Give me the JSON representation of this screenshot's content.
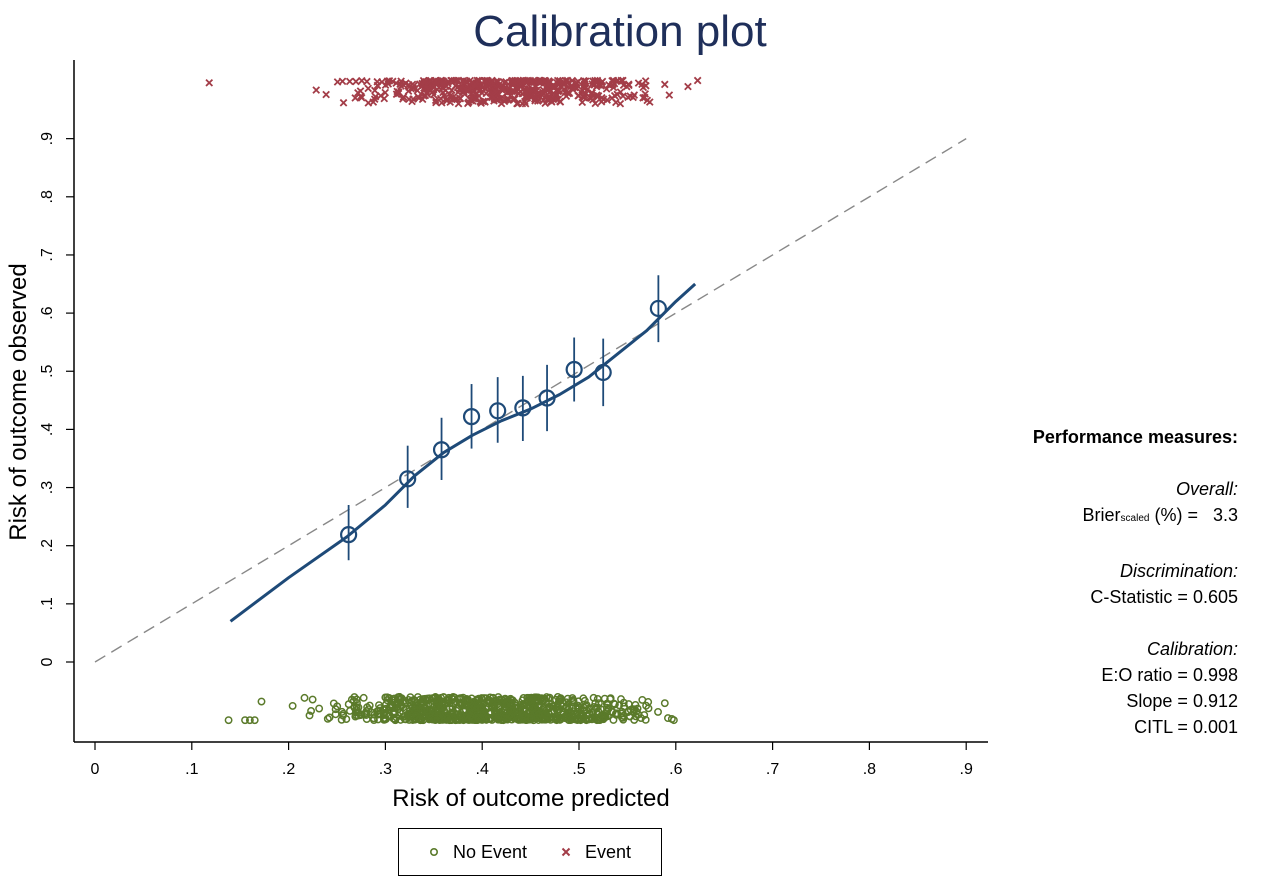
{
  "chart_data": {
    "type": "scatter",
    "title": "Calibration plot",
    "xlabel": "Risk of outcome predicted",
    "ylabel": "Risk of outcome observed",
    "xlim": [
      0,
      0.9
    ],
    "ylim": [
      -0.14,
      1.0
    ],
    "x_ticks": [
      0,
      0.1,
      0.2,
      0.3,
      0.4,
      0.5,
      0.6,
      0.7,
      0.8,
      0.9
    ],
    "x_tick_labels": [
      "0",
      ".1",
      ".2",
      ".3",
      ".4",
      ".5",
      ".6",
      ".7",
      ".8",
      ".9"
    ],
    "y_ticks": [
      0,
      0.1,
      0.2,
      0.3,
      0.4,
      0.5,
      0.6,
      0.7,
      0.8,
      0.9
    ],
    "y_tick_labels": [
      "0",
      ".1",
      ".2",
      ".3",
      ".4",
      ".5",
      ".6",
      ".7",
      ".8",
      ".9"
    ],
    "grid": false,
    "legend_position": "bottom",
    "reference_line": {
      "x": [
        0,
        0.9
      ],
      "y": [
        0,
        0.9
      ],
      "style": "dashed"
    },
    "smoothed_curve": {
      "x": [
        0.14,
        0.2,
        0.26,
        0.3,
        0.33,
        0.36,
        0.39,
        0.42,
        0.45,
        0.48,
        0.51,
        0.54,
        0.57,
        0.6,
        0.62
      ],
      "y": [
        0.07,
        0.145,
        0.215,
        0.27,
        0.32,
        0.36,
        0.39,
        0.415,
        0.435,
        0.46,
        0.49,
        0.53,
        0.57,
        0.62,
        0.65
      ]
    },
    "grouped_points": [
      {
        "x": 0.262,
        "y": 0.219,
        "lo": 0.175,
        "hi": 0.27
      },
      {
        "x": 0.323,
        "y": 0.315,
        "lo": 0.265,
        "hi": 0.372
      },
      {
        "x": 0.358,
        "y": 0.365,
        "lo": 0.313,
        "hi": 0.42
      },
      {
        "x": 0.389,
        "y": 0.422,
        "lo": 0.367,
        "hi": 0.478
      },
      {
        "x": 0.416,
        "y": 0.432,
        "lo": 0.377,
        "hi": 0.49
      },
      {
        "x": 0.442,
        "y": 0.437,
        "lo": 0.38,
        "hi": 0.492
      },
      {
        "x": 0.467,
        "y": 0.454,
        "lo": 0.397,
        "hi": 0.511
      },
      {
        "x": 0.495,
        "y": 0.503,
        "lo": 0.448,
        "hi": 0.558
      },
      {
        "x": 0.525,
        "y": 0.498,
        "lo": 0.44,
        "hi": 0.556
      },
      {
        "x": 0.582,
        "y": 0.608,
        "lo": 0.55,
        "hi": 0.665
      }
    ],
    "event_spikes": {
      "x_range": [
        0.12,
        0.64
      ],
      "y_range": [
        0.96,
        1.0
      ]
    },
    "no_event_spikes": {
      "x_range": [
        0.14,
        0.635
      ],
      "y_range": [
        -0.1,
        -0.06
      ]
    },
    "series": [
      {
        "name": "No Event",
        "marker": "circle",
        "color": "#5a7a2a"
      },
      {
        "name": "Event",
        "marker": "x",
        "color": "#a33d48"
      }
    ]
  },
  "colors": {
    "curve": "#1e4a78",
    "no_event": "#5a7a2a",
    "event": "#a33d48",
    "title": "#1f2f5a",
    "reference": "#888888"
  },
  "performance": {
    "header": "Performance measures:",
    "overall_label": "Overall:",
    "brier_prefix": "Brier",
    "brier_sub": "scaled",
    "brier_suffix": " (%) =   3.3",
    "discrimination_label": "Discrimination:",
    "cstat": "C-Statistic = 0.605",
    "calibration_label": "Calibration:",
    "eo_ratio": "E:O ratio = 0.998",
    "slope": "Slope = 0.912",
    "citl": "CITL = 0.001"
  },
  "legend": {
    "no_event": "No Event",
    "event": "Event"
  }
}
